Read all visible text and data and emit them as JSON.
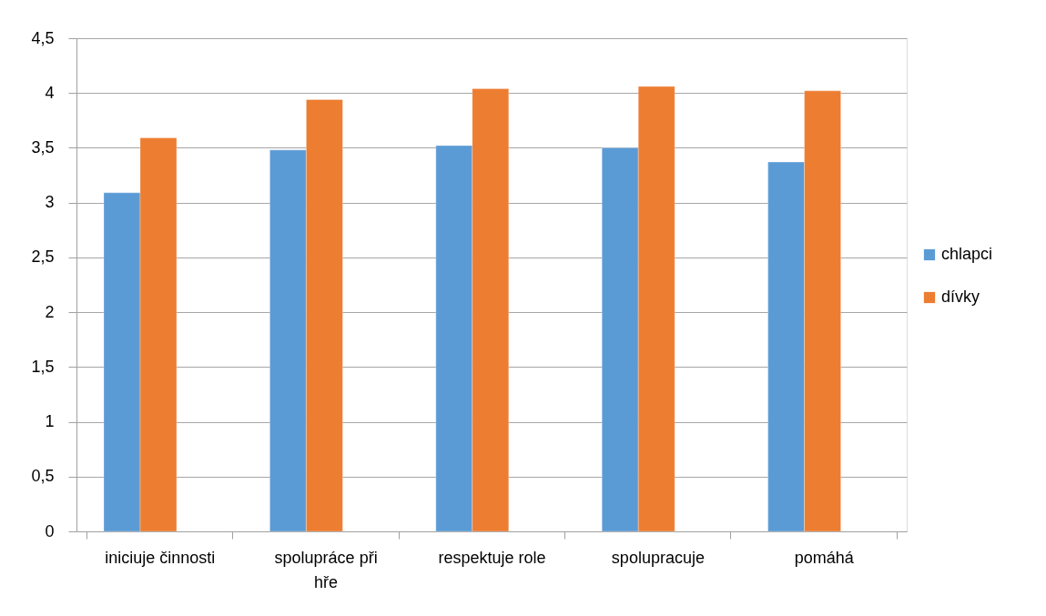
{
  "chart_data": {
    "type": "bar",
    "categories": [
      "iniciuje činnosti",
      "spolupráce při hře",
      "respektuje role",
      "spolupracuje",
      "pomáhá"
    ],
    "series": [
      {
        "name": "chlapci",
        "color": "#5b9bd5",
        "values": [
          3.09,
          3.48,
          3.52,
          3.5,
          3.37
        ]
      },
      {
        "name": "dívky",
        "color": "#ed7d31",
        "values": [
          3.59,
          3.94,
          4.04,
          4.06,
          4.02
        ]
      }
    ],
    "ylim": [
      0,
      4.5
    ],
    "yticks": [
      0,
      {
        "value": 0.5,
        "label": "0,5"
      },
      1,
      {
        "value": 1.5,
        "label": "1,5"
      },
      2,
      {
        "value": 2.5,
        "label": "2,5"
      },
      3,
      {
        "value": 3.5,
        "label": "3,5"
      },
      4,
      {
        "value": 4.5,
        "label": "4,5"
      }
    ],
    "grid": "y",
    "legend": "right"
  }
}
